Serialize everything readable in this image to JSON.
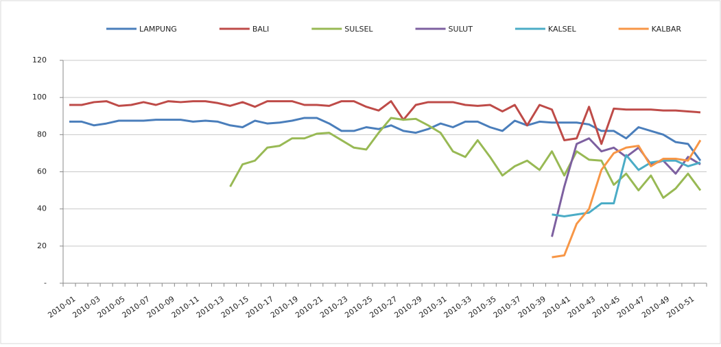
{
  "chart_data": {
    "type": "line",
    "categories": [
      "2010-01",
      null,
      "2010-03",
      null,
      "2010-05",
      null,
      "2010-07",
      null,
      "2010-09",
      null,
      "2010-11",
      null,
      "2010-13",
      null,
      "2010-15",
      null,
      "2010-17",
      null,
      "2010-19",
      null,
      "2010-21",
      null,
      "2010-23",
      null,
      "2010-25",
      null,
      "2010-27",
      null,
      "2010-29",
      null,
      "2010-31",
      null,
      "2010-33",
      null,
      "2010-35",
      null,
      "2010-37",
      null,
      "2010-39",
      null,
      "2010-41",
      null,
      "2010-43",
      null,
      "2010-45",
      null,
      "2010-47",
      null,
      "2010-49",
      null,
      "2010-51",
      null
    ],
    "series": [
      {
        "name": "LAMPUNG",
        "color": "#4a7ebb",
        "values": [
          87,
          87,
          85,
          86,
          87.5,
          87.5,
          87.5,
          88,
          88,
          88,
          87,
          87.5,
          87,
          85,
          84,
          87.5,
          86,
          86.5,
          87.5,
          89,
          89,
          86,
          82,
          82,
          84,
          83,
          85,
          82,
          81,
          83,
          86,
          84,
          87,
          87,
          84,
          82,
          87.5,
          85,
          87,
          86.5,
          86.5,
          86.5,
          85.5,
          82,
          82,
          78,
          84,
          82,
          80,
          76,
          75,
          66
        ]
      },
      {
        "name": "BALI",
        "color": "#be4b48",
        "values": [
          96,
          96,
          97.5,
          98,
          95.5,
          96,
          97.5,
          96,
          98,
          97.5,
          98,
          98,
          97,
          95.5,
          97.5,
          95,
          98,
          98,
          98,
          96,
          96,
          95.5,
          98,
          98,
          95,
          93,
          98,
          88,
          96,
          97.5,
          97.5,
          97.5,
          96,
          95.5,
          96,
          92.5,
          96,
          85,
          96,
          93.5,
          77,
          78,
          95,
          75,
          94,
          93.5,
          93.5,
          93.5,
          93,
          93,
          92.5,
          92
        ]
      },
      {
        "name": "SULSEL",
        "color": "#98b954",
        "values": [
          null,
          null,
          null,
          null,
          null,
          null,
          null,
          null,
          null,
          null,
          null,
          null,
          null,
          52,
          64,
          66,
          73,
          74,
          78,
          78,
          80.5,
          81,
          77,
          73,
          72,
          81,
          89,
          88,
          88.5,
          85,
          81,
          71,
          68,
          77,
          68,
          58,
          63,
          66,
          61,
          71,
          58,
          71,
          66.5,
          66,
          53,
          59,
          50,
          58,
          46,
          51,
          59,
          50
        ]
      },
      {
        "name": "SULUT",
        "color": "#7d60a0",
        "values": [
          null,
          null,
          null,
          null,
          null,
          null,
          null,
          null,
          null,
          null,
          null,
          null,
          null,
          null,
          null,
          null,
          null,
          null,
          null,
          null,
          null,
          null,
          null,
          null,
          null,
          null,
          null,
          null,
          null,
          null,
          null,
          null,
          null,
          null,
          null,
          null,
          null,
          null,
          null,
          25,
          52,
          75,
          78,
          71,
          73,
          68,
          73,
          64,
          66,
          59,
          68,
          64
        ]
      },
      {
        "name": "KALSEL",
        "color": "#4bacc6",
        "values": [
          null,
          null,
          null,
          null,
          null,
          null,
          null,
          null,
          null,
          null,
          null,
          null,
          null,
          null,
          null,
          null,
          null,
          null,
          null,
          null,
          null,
          null,
          null,
          null,
          null,
          null,
          null,
          null,
          null,
          null,
          null,
          null,
          null,
          null,
          null,
          null,
          null,
          null,
          null,
          37,
          36,
          37,
          38,
          43,
          43,
          69,
          61,
          65,
          66,
          66,
          63,
          65
        ]
      },
      {
        "name": "KALBAR",
        "color": "#f79646",
        "values": [
          null,
          null,
          null,
          null,
          null,
          null,
          null,
          null,
          null,
          null,
          null,
          null,
          null,
          null,
          null,
          null,
          null,
          null,
          null,
          null,
          null,
          null,
          null,
          null,
          null,
          null,
          null,
          null,
          null,
          null,
          null,
          null,
          null,
          null,
          null,
          null,
          null,
          null,
          null,
          14,
          15,
          32,
          40,
          61,
          70,
          73,
          74,
          63,
          67,
          67,
          66,
          77
        ]
      }
    ],
    "ylim": [
      0,
      120
    ],
    "yticks": [
      {
        "value": 0,
        "label": "-"
      },
      20,
      40,
      60,
      80,
      100,
      120
    ],
    "grid": true,
    "legend": "top"
  }
}
